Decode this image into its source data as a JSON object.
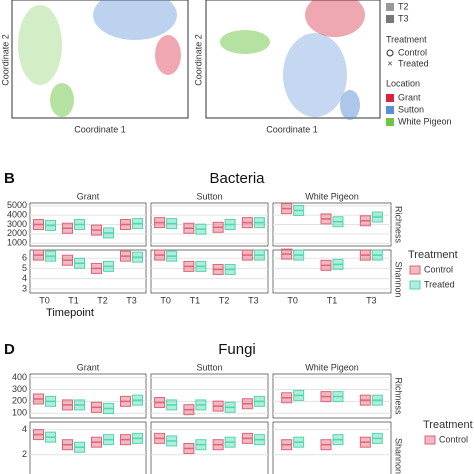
{
  "pcoa": {
    "y_label": "Coordinate 2",
    "x_label": "Coordinate 1",
    "legend": {
      "timepoints": [
        "T2",
        "T3"
      ],
      "treatment_title": "Treatment",
      "treatment": [
        "Control",
        "Treated"
      ],
      "location_title": "Location",
      "locations": [
        {
          "name": "Grant",
          "color": "#d7263d"
        },
        {
          "name": "Sutton",
          "color": "#5b8fd6"
        },
        {
          "name": "White Pigeon",
          "color": "#6cc644"
        }
      ]
    }
  },
  "chart_data": [
    {
      "type": "box",
      "panel_label": "B",
      "title": "Bacteria",
      "x_label": "Timepoint",
      "legend_title": "Treatment",
      "series": [
        {
          "name": "Control",
          "color": "#e06377"
        },
        {
          "name": "Treated",
          "color": "#4fd8b0"
        }
      ],
      "facets": [
        {
          "name": "Grant",
          "categories": [
            "T0",
            "T1",
            "T2",
            "T3"
          ]
        },
        {
          "name": "Sutton",
          "categories": [
            "T0",
            "T1",
            "T2",
            "T3"
          ]
        },
        {
          "name": "White Pigeon",
          "categories": [
            "T0",
            "T1",
            "T3"
          ]
        }
      ],
      "metrics": [
        {
          "name": "Richness",
          "ylim": [
            700,
            5300
          ],
          "yticks": [
            1000,
            2000,
            3000,
            4000,
            5000
          ],
          "values": [
            [
              [
                3000,
                2600,
                2400,
                3000
              ],
              [
                2900,
                3000,
                2100,
                3100
              ]
            ],
            [
              [
                3200,
                2600,
                2700,
                3200
              ],
              [
                3100,
                2500,
                3000,
                3200
              ]
            ],
            [
              [
                4700,
                3600,
                3400
              ],
              [
                4500,
                3300,
                3800
              ]
            ]
          ]
        },
        {
          "name": "Shannon",
          "ylim": [
            2.6,
            6.8
          ],
          "yticks": [
            3,
            4,
            5,
            6
          ],
          "values": [
            [
              [
                6.3,
                5.8,
                5.0,
                6.2
              ],
              [
                6.2,
                5.5,
                5.2,
                6.1
              ]
            ],
            [
              [
                6.3,
                5.2,
                4.9,
                6.3
              ],
              [
                6.2,
                5.2,
                4.9,
                6.3
              ]
            ],
            [
              [
                6.4,
                5.3,
                6.3
              ],
              [
                6.3,
                5.4,
                6.3
              ]
            ]
          ]
        }
      ]
    },
    {
      "type": "box",
      "panel_label": "D",
      "title": "Fungi",
      "legend_title": "Treatment",
      "series": [
        {
          "name": "Control",
          "color": "#e06377"
        },
        {
          "color": "#4fd8b0"
        }
      ],
      "facets": [
        {
          "name": "Grant",
          "n": 4
        },
        {
          "name": "Sutton",
          "n": 4
        },
        {
          "name": "White Pigeon",
          "n": 3
        }
      ],
      "metrics": [
        {
          "name": "Richness",
          "ylim": [
            60,
            430
          ],
          "yticks": [
            100,
            200,
            300,
            400
          ],
          "values": [
            [
              [
                220,
                170,
                150,
                200
              ],
              [
                200,
                170,
                140,
                210
              ]
            ],
            [
              [
                190,
                130,
                160,
                180
              ],
              [
                170,
                170,
                150,
                200
              ]
            ],
            [
              [
                230,
                240,
                210
              ],
              [
                250,
                240,
                210
              ]
            ]
          ]
        },
        {
          "name": "Shannon",
          "ylim": [
            0,
            4.6
          ],
          "yticks": [
            2,
            4
          ],
          "values": [
            [
              [
                3.6,
                2.8,
                3.0,
                3.2
              ],
              [
                3.4,
                2.6,
                3.2,
                3.3
              ]
            ],
            [
              [
                3.3,
                2.5,
                2.8,
                3.3
              ],
              [
                3.1,
                2.8,
                3.0,
                3.2
              ]
            ],
            [
              [
                2.8,
                2.8,
                3.0
              ],
              [
                3.0,
                3.2,
                3.3
              ]
            ]
          ]
        }
      ]
    }
  ]
}
